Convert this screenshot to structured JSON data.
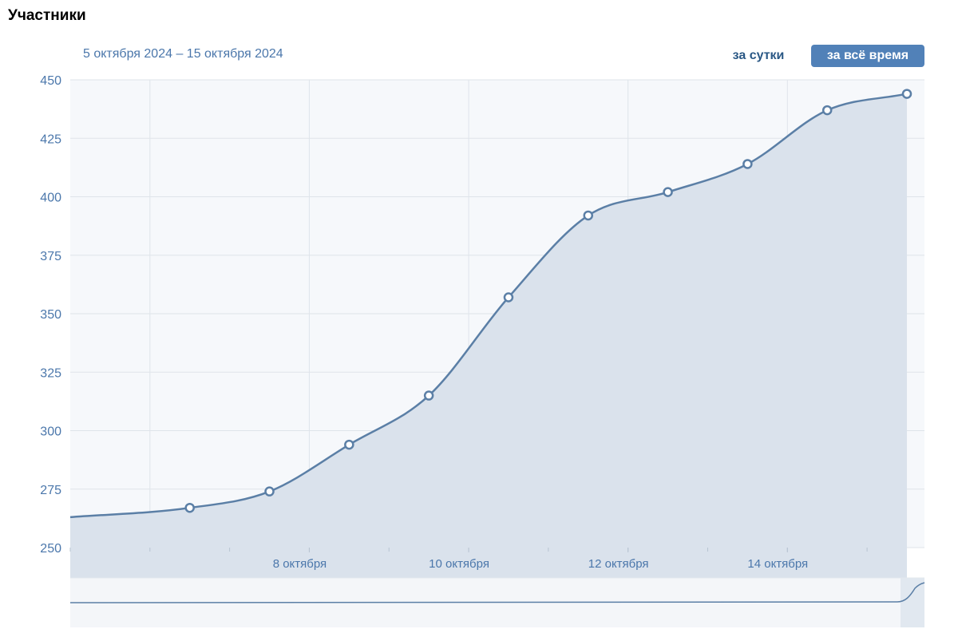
{
  "header": {
    "title": "Участники",
    "date_range": "5 октября 2024 – 15 октября 2024"
  },
  "period_buttons": {
    "day_label": "за сутки",
    "all_time_label": "за всё время",
    "active": "all_time"
  },
  "colors": {
    "line": "#5b7fa6",
    "fill": "#dae2ec",
    "plot_bg": "#f6f8fb",
    "grid": "#dfe4ea",
    "tick_text": "#4b77ab",
    "active_button": "#5181b8"
  },
  "chart_data": {
    "type": "area",
    "x": [
      "2024-10-05T00:00",
      "2024-10-06T12:00",
      "2024-10-07T12:00",
      "2024-10-08T12:00",
      "2024-10-09T12:00",
      "2024-10-10T12:00",
      "2024-10-11T12:00",
      "2024-10-12T12:00",
      "2024-10-13T12:00",
      "2024-10-14T12:00",
      "2024-10-15T12:00"
    ],
    "values": [
      263,
      267,
      274,
      294,
      315,
      357,
      392,
      402,
      414,
      437,
      444
    ],
    "xlim": [
      "2024-10-05T00:00",
      "2024-10-15T12:00"
    ],
    "ylim": [
      250,
      450
    ],
    "yticks": [
      250,
      275,
      300,
      325,
      350,
      375,
      400,
      425,
      450
    ],
    "xticks": [
      {
        "date": "2024-10-08",
        "label": "8 октября"
      },
      {
        "date": "2024-10-10",
        "label": "10 октября"
      },
      {
        "date": "2024-10-12",
        "label": "12 октября"
      },
      {
        "date": "2024-10-14",
        "label": "14 октября"
      }
    ],
    "minor_xticks": [
      "2024-10-05",
      "2024-10-06",
      "2024-10-07",
      "2024-10-08",
      "2024-10-09",
      "2024-10-10",
      "2024-10-11",
      "2024-10-12",
      "2024-10-13",
      "2024-10-14",
      "2024-10-15"
    ],
    "grid": true,
    "navigator": true
  }
}
